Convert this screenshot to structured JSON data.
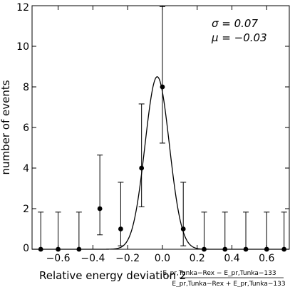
{
  "chart_data": {
    "type": "scatter",
    "ylabel": "number of events",
    "xlabel": {
      "text": "Relative energy deviation 2",
      "numerator": "E_pr,Tunka−Rex − E_pr,Tunka−133",
      "denominator": "E_pr,Tunka−Rex + E_pr,Tunka−133"
    },
    "annotations": [
      "σ = 0.07",
      "μ = −0.03"
    ],
    "xlim": [
      -0.75,
      0.73
    ],
    "ylim": [
      0,
      12
    ],
    "x_ticks": [
      -0.6,
      -0.4,
      -0.2,
      0.0,
      0.2,
      0.4,
      0.6
    ],
    "x_tick_labels": [
      "−0.6",
      "−0.4",
      "−0.2",
      "0.0",
      "0.2",
      "0.4",
      "0.6"
    ],
    "y_ticks": [
      0,
      2,
      4,
      6,
      8,
      10,
      12
    ],
    "y_tick_labels": [
      "0",
      "2",
      "4",
      "6",
      "8",
      "10",
      "12"
    ],
    "points": [
      {
        "x": -0.7,
        "y": 0,
        "yerr_low": 0,
        "yerr_high": 1.83
      },
      {
        "x": -0.6,
        "y": 0,
        "yerr_low": 0,
        "yerr_high": 1.83
      },
      {
        "x": -0.48,
        "y": 0,
        "yerr_low": 0,
        "yerr_high": 1.83
      },
      {
        "x": -0.36,
        "y": 2,
        "yerr_low": 1.29,
        "yerr_high": 2.64
      },
      {
        "x": -0.24,
        "y": 1,
        "yerr_low": 0.83,
        "yerr_high": 2.3
      },
      {
        "x": -0.12,
        "y": 4,
        "yerr_low": 1.91,
        "yerr_high": 3.16
      },
      {
        "x": 0.0,
        "y": 8,
        "yerr_low": 2.77,
        "yerr_high": 3.95
      },
      {
        "x": 0.12,
        "y": 1,
        "yerr_low": 0.83,
        "yerr_high": 2.3
      },
      {
        "x": 0.24,
        "y": 0,
        "yerr_low": 0,
        "yerr_high": 1.83
      },
      {
        "x": 0.36,
        "y": 0,
        "yerr_low": 0,
        "yerr_high": 1.83
      },
      {
        "x": 0.48,
        "y": 0,
        "yerr_low": 0,
        "yerr_high": 1.83
      },
      {
        "x": 0.6,
        "y": 0,
        "yerr_low": 0,
        "yerr_high": 1.83
      },
      {
        "x": 0.7,
        "y": 0,
        "yerr_low": 0,
        "yerr_high": 1.83
      }
    ],
    "fit": {
      "type": "gaussian",
      "mu": -0.03,
      "sigma": 0.07,
      "amplitude": 8.5
    },
    "grid": false,
    "legend": "none"
  }
}
